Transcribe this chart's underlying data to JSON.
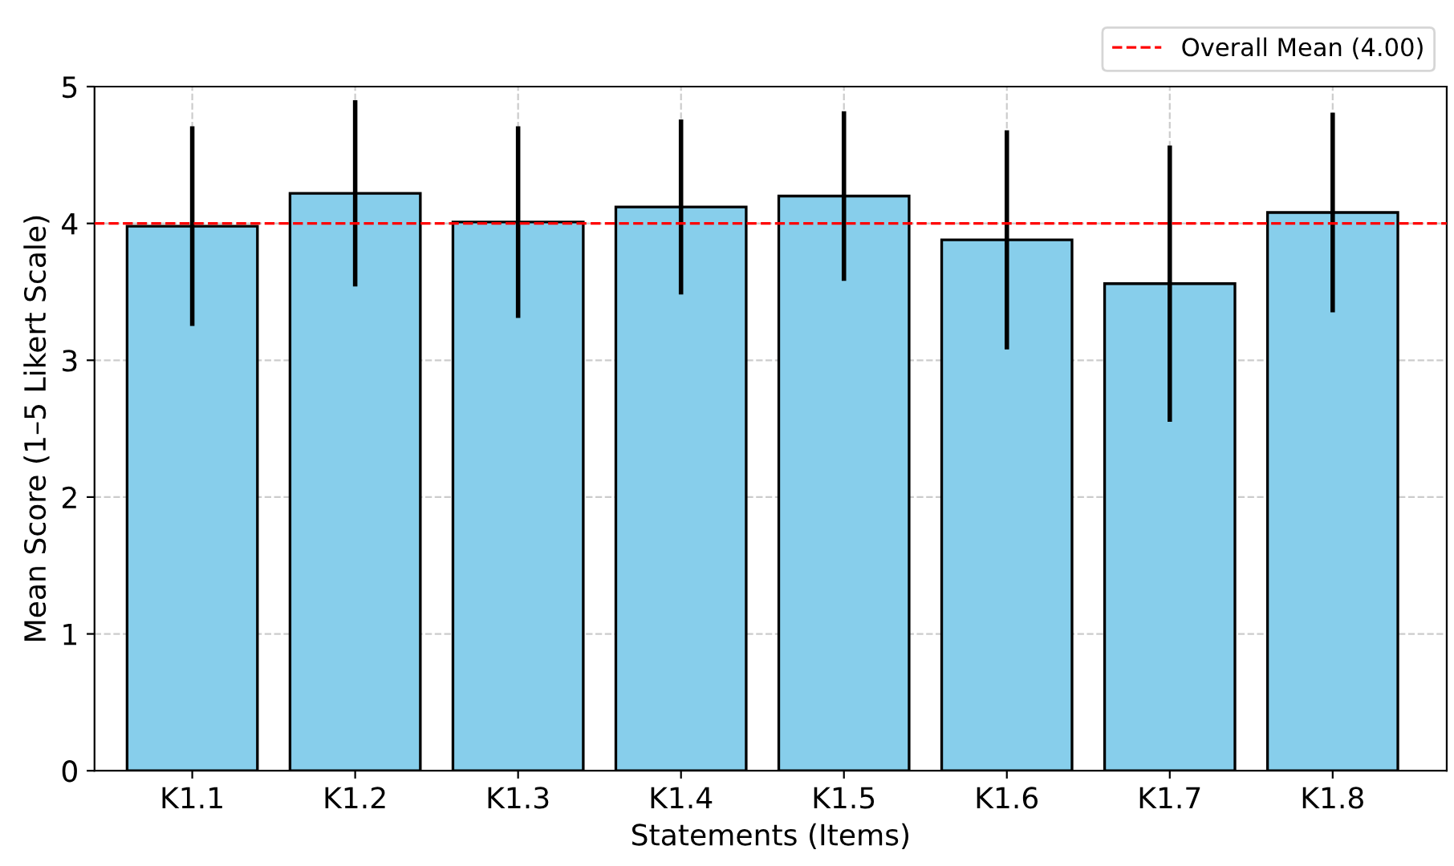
{
  "chart_data": {
    "type": "bar",
    "xlabel": "Statements (Items)",
    "ylabel": "Mean Score (1–5 Likert Scale)",
    "categories": [
      "K1.1",
      "K1.2",
      "K1.3",
      "K1.4",
      "K1.5",
      "K1.6",
      "K1.7",
      "K1.8"
    ],
    "values": [
      3.98,
      4.22,
      4.01,
      4.12,
      4.2,
      3.88,
      3.56,
      4.08
    ],
    "errors": [
      0.73,
      0.68,
      0.7,
      0.64,
      0.62,
      0.8,
      1.01,
      0.73
    ],
    "color": "#87ceeb",
    "ylim": [
      0,
      5
    ],
    "yticks": [
      0,
      1,
      2,
      3,
      4,
      5
    ],
    "ref_lines": [
      {
        "axis": "y",
        "value": 4.0,
        "label": "Overall Mean (4.00)",
        "color": "#ff0000",
        "line_style": "dashed"
      }
    ],
    "grid": true,
    "legend": "top right"
  }
}
